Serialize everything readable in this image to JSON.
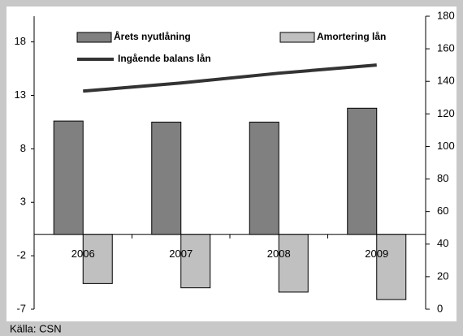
{
  "chart_data": {
    "type": "bar",
    "categories": [
      "2006",
      "2007",
      "2008",
      "2009"
    ],
    "series": [
      {
        "name": "Årets nyutlåning",
        "color": "#808080",
        "values": [
          10.6,
          10.5,
          10.5,
          11.8
        ]
      },
      {
        "name": "Amortering lån",
        "color": "#c0c0c0",
        "values": [
          -4.6,
          -5.0,
          -5.4,
          -6.1
        ]
      },
      {
        "name": "Ingående balans lån",
        "type": "line",
        "color": "#333333",
        "axis": "y2",
        "values": [
          134,
          139,
          145,
          150
        ]
      }
    ],
    "ylim": [
      -7,
      20.4
    ],
    "yticks": [
      -7,
      -2,
      3,
      8,
      13,
      18
    ],
    "y2lim": [
      0,
      180
    ],
    "y2ticks": [
      0,
      20,
      40,
      60,
      80,
      100,
      120,
      140,
      160,
      180
    ],
    "source": "Källa: CSN"
  }
}
